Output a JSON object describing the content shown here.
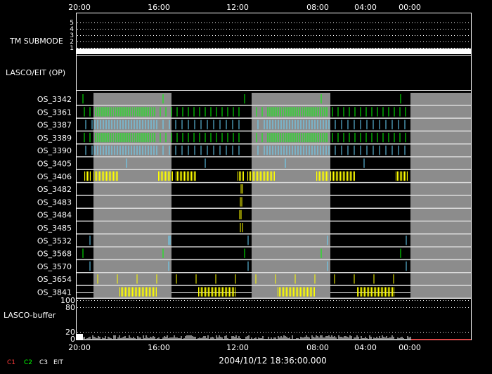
{
  "top_axis": {
    "ticks": [
      "20:00",
      "16:00",
      "12:00",
      "08:00",
      "04:00",
      "00:00"
    ]
  },
  "bottom_axis": {
    "ticks": [
      "20:00",
      "16:00",
      "12:00",
      "08:00",
      "04:00",
      "00:00"
    ]
  },
  "tm_submode": {
    "label": "TM SUBMODE",
    "levels": [
      "5",
      "4",
      "3",
      "2",
      "1"
    ],
    "current_level": 1
  },
  "lasco_eit_label": "LASCO/EIT (OP)",
  "os_rows": [
    {
      "label": "OS_3342",
      "color": "#00ff00"
    },
    {
      "label": "OS_3361",
      "color": "#00ff00"
    },
    {
      "label": "OS_3387",
      "color": "#6ad8ff"
    },
    {
      "label": "OS_3389",
      "color": "#00ff00"
    },
    {
      "label": "OS_3390",
      "color": "#6ad8ff"
    },
    {
      "label": "OS_3405",
      "color": "#6ad8ff"
    },
    {
      "label": "OS_3406",
      "color": "#ffff00"
    },
    {
      "label": "OS_3482",
      "color": "#ffff00"
    },
    {
      "label": "OS_3483",
      "color": "#ffff00"
    },
    {
      "label": "OS_3484",
      "color": "#ffff00"
    },
    {
      "label": "OS_3485",
      "color": "#ffff00"
    },
    {
      "label": "OS_3532",
      "color": "#6ad8ff"
    },
    {
      "label": "OS_3568",
      "color": "#00ff00"
    },
    {
      "label": "OS_3570",
      "color": "#6ad8ff"
    },
    {
      "label": "OS_3654",
      "color": "#ffff00"
    },
    {
      "label": "OS_3841",
      "color": "#ffff00"
    }
  ],
  "buffer": {
    "label": "LASCO-buffer",
    "levels": [
      "100",
      "80",
      "20",
      "0"
    ]
  },
  "legend": [
    {
      "label": "C1",
      "color": "#ff3b3b"
    },
    {
      "label": "C2",
      "color": "#00ff00"
    },
    {
      "label": "C3",
      "color": "#ffffff"
    },
    {
      "label": "EIT",
      "color": "#ffffff"
    }
  ],
  "timestamp": "2004/10/12 18:36:00.000",
  "colors": {
    "background": "#000000",
    "gap_shade": "#8c8c8c",
    "row_divider": "#ffffff",
    "frame": "#ffffff"
  }
}
